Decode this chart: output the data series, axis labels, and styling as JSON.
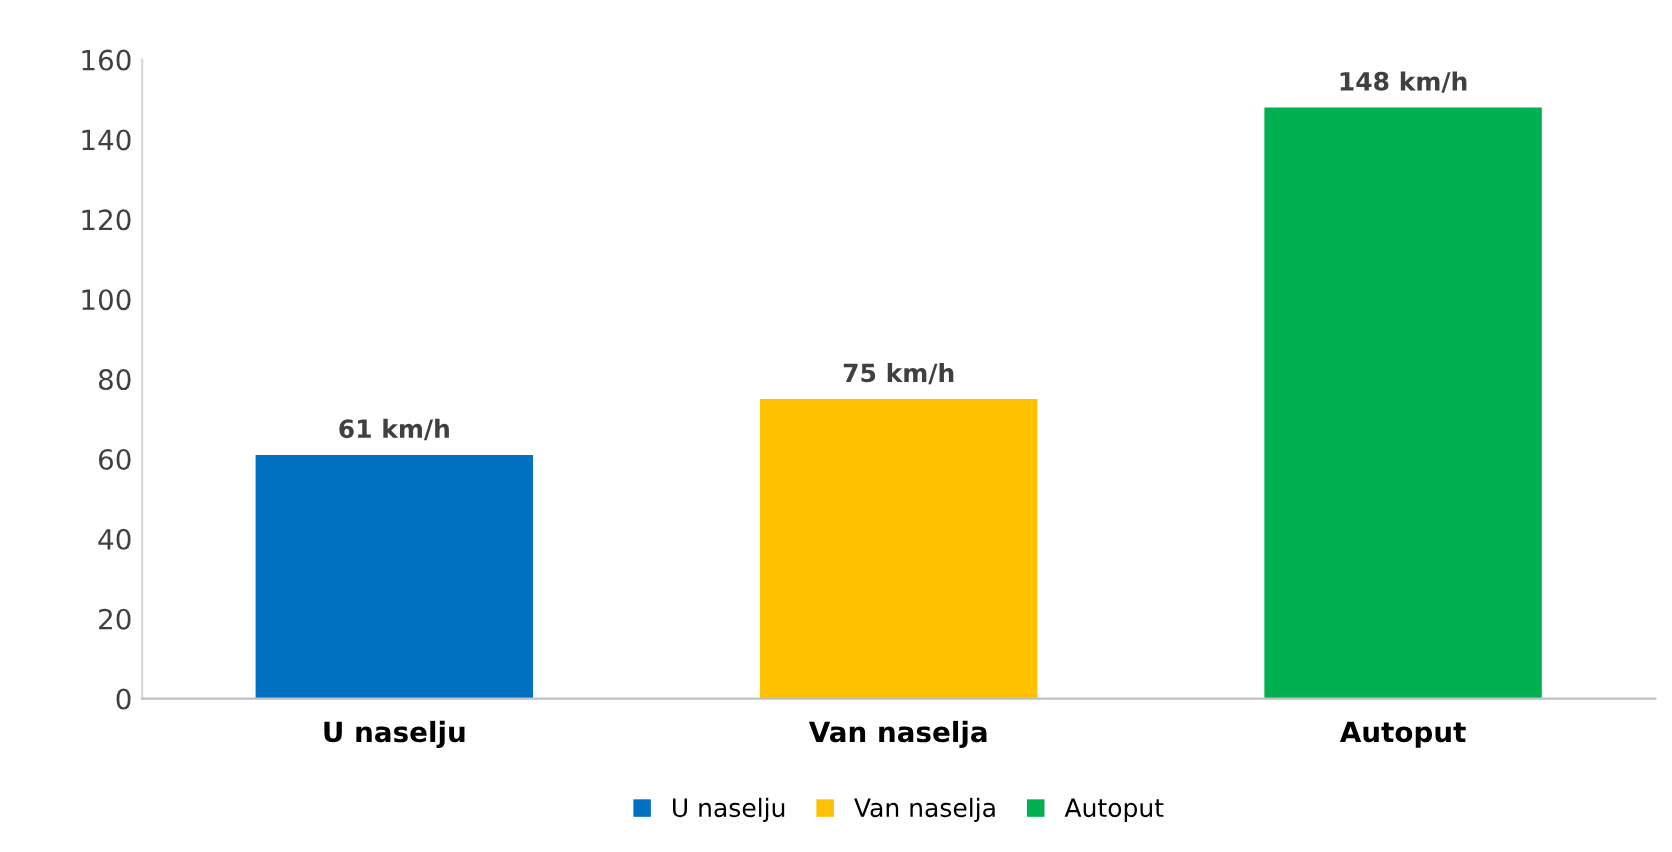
{
  "chart_data": {
    "type": "bar",
    "categories": [
      "U naselju",
      "Van naselja",
      "Autoput"
    ],
    "series": [
      {
        "name": "U naselju",
        "color": "#0070c0",
        "values": [
          61,
          null,
          null
        ],
        "value_labels": [
          "61 km/h",
          null,
          null
        ]
      },
      {
        "name": "Van naselja",
        "color": "#ffc000",
        "values": [
          null,
          75,
          null
        ],
        "value_labels": [
          null,
          "75 km/h",
          null
        ]
      },
      {
        "name": "Autoput",
        "color": "#00b050",
        "values": [
          null,
          null,
          148
        ],
        "value_labels": [
          null,
          null,
          "148 km/h"
        ]
      }
    ],
    "ylim": [
      0,
      160
    ],
    "yticks": [
      0,
      20,
      40,
      60,
      80,
      100,
      120,
      140,
      160
    ],
    "grid": false,
    "legend": "bottom"
  }
}
